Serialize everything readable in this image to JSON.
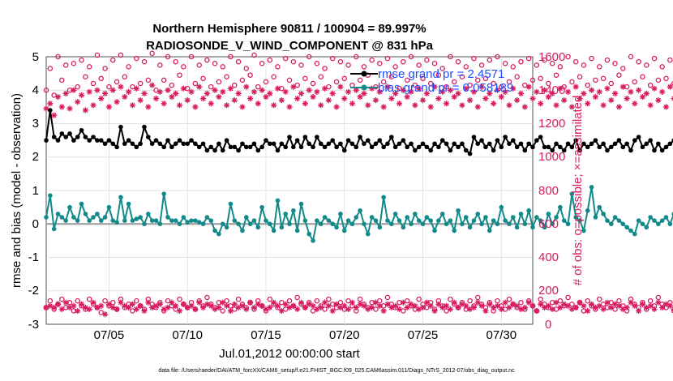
{
  "chart_data": {
    "type": "line",
    "title": [
      "Northern Hemisphere 90811 / 100904 = 89.997%",
      "RADIOSONDE_V_WIND_COMPONENT @ 831 hPa"
    ],
    "xlabel": "Jul.01,2012 00:00:00 start",
    "ylabel_left": "rmse and bias (model - observation)",
    "ylabel_right": "# of obs: o=possible; ×=assimilated",
    "footer": "data file: /Users/raeder/DAI/ATM_forcXX/CAM6_setup/f.e21.FHIST_BGC.f09_025.CAM6assim.011/Diags_NTrS_2012-07/obs_diag_output.nc",
    "xlim": [
      1,
      32
    ],
    "ylim_left": [
      -3,
      5
    ],
    "ylim_right": [
      0,
      1600
    ],
    "x_ticks": [
      5,
      10,
      15,
      20,
      25,
      30
    ],
    "x_tick_labels": [
      "07/05",
      "07/10",
      "07/15",
      "07/20",
      "07/25",
      "07/30"
    ],
    "y_ticks_left": [
      "5",
      "4",
      "3",
      "2",
      "1",
      "0",
      "-1",
      "-2",
      "-3"
    ],
    "y_ticks_right": [
      "1600",
      "1400",
      "1200",
      "1000",
      "800",
      "600",
      "400",
      "200",
      "0"
    ],
    "colors": {
      "rmse": "#000000",
      "bias": "#138a8a",
      "obs": "#d81b60",
      "legend_text": "#1f4fff",
      "zero": "#a0a0a0"
    },
    "legend": [
      {
        "name": "rmse",
        "text": "rmse grand pr = 2.4571"
      },
      {
        "name": "bias",
        "text": "bias grand pr = 0.058189"
      }
    ],
    "x_start": 1.0,
    "x_step": 0.25,
    "series": [
      {
        "name": "rmse",
        "axis": "left",
        "values": [
          2.5,
          3.4,
          2.6,
          2.5,
          2.7,
          2.6,
          2.7,
          2.5,
          2.6,
          2.8,
          2.6,
          2.5,
          2.6,
          2.5,
          2.5,
          2.4,
          2.5,
          2.4,
          2.3,
          2.9,
          2.4,
          2.5,
          2.4,
          2.3,
          2.4,
          2.9,
          2.6,
          2.4,
          2.5,
          2.4,
          2.3,
          2.5,
          2.3,
          2.4,
          2.5,
          2.4,
          2.4,
          2.5,
          2.4,
          2.3,
          2.4,
          2.2,
          2.3,
          2.2,
          2.4,
          2.2,
          2.5,
          2.3,
          2.3,
          2.2,
          2.4,
          2.3,
          2.3,
          2.4,
          2.2,
          2.3,
          2.5,
          2.4,
          2.4,
          2.2,
          2.4,
          2.3,
          2.6,
          2.3,
          2.5,
          2.3,
          2.6,
          2.4,
          2.3,
          2.6,
          2.4,
          2.3,
          2.4,
          2.5,
          2.3,
          2.4,
          2.2,
          2.5,
          2.4,
          2.3,
          2.6,
          2.4,
          2.5,
          2.3,
          2.4,
          2.5,
          2.3,
          2.4,
          2.6,
          2.3,
          2.4,
          2.5,
          2.3,
          2.4,
          2.2,
          2.3,
          2.4,
          2.3,
          2.2,
          2.4,
          2.3,
          2.5,
          2.4,
          2.2,
          2.4,
          2.3,
          2.4,
          2.2,
          2.1,
          2.6,
          2.4,
          2.5,
          2.3,
          2.4,
          2.2,
          2.5,
          2.3,
          2.6,
          2.4,
          2.5,
          2.3,
          2.4,
          2.2,
          2.4,
          2.3,
          2.5,
          2.6,
          2.3,
          2.3,
          2.2,
          2.4,
          2.3,
          2.2,
          2.4,
          2.3,
          2.5,
          2.2,
          2.4,
          2.3,
          2.4,
          2.5,
          2.3,
          2.4,
          2.2,
          2.3,
          2.4,
          2.5,
          2.3,
          2.4,
          2.2,
          2.5,
          2.6,
          2.3,
          2.4,
          2.5,
          2.2,
          2.4,
          2.2,
          2.3,
          2.4,
          2.5,
          2.2,
          2.4,
          2.3,
          2.5,
          2.4,
          2.2,
          2.3,
          2.5,
          2.6,
          2.7,
          2.5,
          2.4,
          2.2,
          2.1,
          2.4,
          2.3,
          2.4,
          2.4
        ]
      },
      {
        "name": "bias",
        "axis": "left",
        "values": [
          0.2,
          0.85,
          -0.15,
          0.3,
          0.2,
          0.1,
          0.5,
          0.2,
          0.1,
          0.6,
          0.3,
          0.1,
          0.2,
          0.3,
          0.1,
          0.2,
          0.5,
          0.1,
          0.05,
          0.8,
          0.1,
          0.6,
          0.1,
          0.15,
          0.2,
          0.0,
          0.3,
          0.1,
          0.1,
          0.0,
          0.9,
          0.2,
          0.1,
          0.1,
          0.0,
          0.2,
          0.05,
          0.1,
          0.1,
          0.05,
          0.0,
          0.2,
          0.1,
          -0.2,
          -0.3,
          0.0,
          -0.1,
          0.6,
          0.1,
          0.0,
          -0.2,
          0.2,
          0.0,
          0.1,
          -0.1,
          0.5,
          0.1,
          0.0,
          -0.2,
          0.7,
          -0.1,
          0.3,
          0.0,
          0.4,
          -0.2,
          0.6,
          0.1,
          -0.3,
          -0.5,
          0.1,
          0.0,
          0.2,
          0.1,
          0.0,
          -0.1,
          0.3,
          -0.2,
          0.1,
          0.0,
          0.2,
          0.4,
          0.0,
          -0.3,
          0.2,
          0.1,
          -0.1,
          0.8,
          0.1,
          0.0,
          0.3,
          0.1,
          -0.1,
          0.2,
          0.0,
          0.3,
          0.1,
          0.0,
          0.2,
          0.1,
          -0.2,
          0.1,
          0.3,
          0.0,
          0.1,
          -0.2,
          0.4,
          0.0,
          0.2,
          -0.1,
          0.1,
          0.3,
          0.0,
          0.2,
          -0.2,
          0.1,
          0.0,
          0.5,
          0.1,
          0.0,
          0.2,
          -0.1,
          0.3,
          0.0,
          0.4,
          -0.1,
          0.2,
          0.1,
          -0.1,
          0.3,
          0.0,
          0.2,
          0.5,
          0.1,
          0.0,
          0.9,
          0.2,
          0.1,
          -0.2,
          0.4,
          1.1,
          0.2,
          0.5,
          0.3,
          0.1,
          0.0,
          0.2,
          0.1,
          0.0,
          -0.1,
          -0.2,
          -0.3,
          0.1,
          0.0,
          -0.1,
          0.2,
          0.1,
          0.0,
          0.1,
          0.2,
          0.0,
          0.3,
          0.1,
          0.2,
          0.0,
          -0.1,
          0.2,
          0.1,
          0.0,
          0.3,
          0.2,
          -0.2,
          0.1,
          0.3,
          0.0,
          -0.3,
          -0.1,
          0.2,
          -0.5,
          -0.2,
          0.3
        ]
      },
      {
        "name": "obs_possible",
        "axis": "right",
        "values": [
          1400,
          1530,
          1370,
          1600,
          1460,
          1550,
          1400,
          1560,
          1420,
          1580,
          1480,
          1540,
          1440,
          1610,
          1470,
          1530,
          1420,
          1580,
          1450,
          1610,
          1480,
          1540,
          1420,
          1590,
          1440,
          1570,
          1460,
          1620,
          1400,
          1550,
          1460,
          1600,
          1430,
          1570,
          1490,
          1540,
          1410,
          1600,
          1440,
          1550,
          1470,
          1580,
          1420,
          1560,
          1450,
          1540,
          1480,
          1600,
          1430,
          1570,
          1460,
          1530,
          1490,
          1610,
          1420,
          1560,
          1450,
          1580,
          1480,
          1540,
          1410,
          1590,
          1460,
          1570,
          1430,
          1550,
          1470,
          1600,
          1440,
          1560,
          1480,
          1530,
          1420,
          1590,
          1450,
          1570,
          1470,
          1550,
          1430,
          1600,
          1460,
          1540,
          1490,
          1580,
          1420,
          1560,
          1450,
          1590,
          1480,
          1540,
          1410,
          1570,
          1460,
          1600,
          1430,
          1550,
          1470,
          1580,
          1440,
          1560,
          1490,
          1530,
          1420,
          1600,
          1450,
          1570,
          1480,
          1540,
          1430,
          1590,
          1460,
          1550,
          1470,
          1580,
          1440,
          1600,
          1420,
          1560,
          1450,
          1540,
          1480,
          1570,
          1430,
          1590,
          1460,
          1550,
          1470,
          1580,
          1440,
          1560,
          1490,
          1540,
          1420,
          1600,
          1450,
          1570,
          1480,
          1550,
          1430,
          1590,
          1460,
          1540,
          1470,
          1580,
          1440,
          1560,
          1490,
          1530,
          1420,
          1600,
          1450,
          1570,
          1480,
          1550,
          1430,
          1590,
          1460,
          1540,
          1470,
          1580,
          1440,
          1560,
          1490,
          1530,
          1420,
          1600,
          1450,
          1570,
          1380,
          1550,
          1430,
          1480,
          1460,
          1540,
          1470,
          1400,
          1440,
          1460,
          1490,
          1380
        ]
      },
      {
        "name": "obs_assimilated",
        "axis": "right",
        "values": [
          1290,
          1320,
          1250,
          1360,
          1300,
          1380,
          1290,
          1400,
          1330,
          1370,
          1280,
          1390,
          1310,
          1400,
          1350,
          1380,
          1300,
          1400,
          1330,
          1420,
          1360,
          1390,
          1310,
          1410,
          1340,
          1380,
          1300,
          1430,
          1350,
          1390,
          1320,
          1400,
          1360,
          1380,
          1310,
          1410,
          1340,
          1390,
          1300,
          1420,
          1350,
          1380,
          1320,
          1400,
          1360,
          1390,
          1310,
          1410,
          1340,
          1380,
          1300,
          1420,
          1350,
          1390,
          1320,
          1400,
          1360,
          1380,
          1310,
          1410,
          1340,
          1390,
          1300,
          1420,
          1350,
          1380,
          1320,
          1400,
          1360,
          1390,
          1310,
          1410,
          1340,
          1380,
          1300,
          1420,
          1350,
          1390,
          1320,
          1400,
          1360,
          1380,
          1310,
          1410,
          1340,
          1390,
          1300,
          1420,
          1350,
          1380,
          1320,
          1400,
          1360,
          1390,
          1310,
          1410,
          1340,
          1380,
          1300,
          1420,
          1350,
          1390,
          1320,
          1400,
          1360,
          1380,
          1310,
          1410,
          1340,
          1390,
          1300,
          1420,
          1350,
          1380,
          1320,
          1400,
          1360,
          1390,
          1310,
          1410,
          1340,
          1380,
          1300,
          1420,
          1350,
          1390,
          1320,
          1400,
          1360,
          1380,
          1310,
          1410,
          1340,
          1390,
          1300,
          1420,
          1350,
          1380,
          1320,
          1400,
          1360,
          1390,
          1310,
          1410,
          1340,
          1380,
          1300,
          1420,
          1350,
          1390,
          1320,
          1400,
          1360,
          1380,
          1310,
          1410,
          1340,
          1390,
          1300,
          1420,
          1350,
          1380,
          1320,
          1400,
          1360,
          1390,
          1310,
          1410,
          1340,
          1380,
          1300,
          1420,
          1350,
          1320,
          1290,
          1360,
          1310,
          1330,
          1280,
          1350,
          1300,
          1310,
          1290
        ]
      },
      {
        "name": "obs_possible_low",
        "axis": "right",
        "values": [
          100,
          140,
          90,
          120,
          150,
          100,
          130,
          80,
          140,
          110,
          90,
          150,
          120,
          100,
          70,
          140,
          110,
          130,
          90,
          150,
          100,
          120,
          80,
          140,
          110,
          90,
          150,
          120,
          100,
          130,
          80,
          140,
          110,
          90,
          150,
          120,
          100,
          130,
          90,
          140,
          110,
          160,
          120,
          100,
          130,
          80,
          140,
          110,
          90,
          150,
          120,
          100,
          130,
          90,
          140,
          110,
          80,
          150,
          120,
          100,
          130,
          90,
          140,
          110,
          160,
          120,
          100,
          130,
          80,
          140,
          110,
          90,
          150,
          120,
          100,
          130,
          90,
          140,
          110,
          80,
          150,
          120,
          100,
          130,
          90,
          140,
          110,
          160,
          120,
          100,
          130,
          80,
          140,
          110,
          90,
          150,
          120,
          100,
          130,
          90,
          140,
          110,
          80,
          150,
          120,
          100,
          130,
          90,
          140,
          110,
          160,
          120,
          100,
          130,
          80,
          140,
          110,
          90,
          150,
          120,
          100,
          130,
          90,
          140,
          110,
          80,
          150,
          120,
          100,
          130,
          90,
          140,
          110,
          160,
          120,
          100,
          130,
          80,
          140,
          110,
          90,
          150,
          120,
          100,
          130,
          90,
          140,
          110,
          80,
          150,
          120,
          100,
          130,
          90,
          140,
          110,
          160,
          120,
          100,
          130,
          80,
          140,
          110,
          90,
          150,
          120,
          100,
          130,
          90,
          140,
          110,
          80,
          0
        ]
      },
      {
        "name": "obs_assimilated_low",
        "axis": "right",
        "values": [
          100,
          110,
          100,
          120,
          90,
          130,
          100,
          110,
          80,
          120,
          100,
          90,
          130,
          100,
          110,
          60,
          120,
          100,
          90,
          130,
          110,
          100,
          120,
          90,
          110,
          80,
          130,
          100,
          110,
          120,
          90,
          100,
          130,
          110,
          80,
          120,
          100,
          110,
          90,
          130,
          100,
          120,
          110,
          90,
          100,
          130,
          110,
          80,
          120,
          100,
          110,
          90,
          130,
          100,
          120,
          110,
          90,
          100,
          130,
          110,
          80,
          120,
          100,
          110,
          90,
          130,
          100,
          120,
          110,
          90,
          100,
          130,
          110,
          80,
          120,
          100,
          110,
          90,
          130,
          100,
          120,
          110,
          90,
          100,
          130,
          110,
          80,
          120,
          100,
          110,
          90,
          130,
          100,
          120,
          110,
          90,
          100,
          130,
          110,
          80,
          120,
          100,
          110,
          90,
          130,
          100,
          120,
          110,
          90,
          100,
          130,
          110,
          80,
          120,
          100,
          110,
          90,
          130,
          100,
          120,
          110,
          90,
          100,
          130,
          110,
          80,
          120,
          100,
          110,
          90,
          130,
          100,
          120,
          110,
          90,
          100,
          130,
          110,
          80,
          120,
          100,
          110,
          90,
          130,
          100,
          120,
          110,
          90,
          100,
          130,
          110,
          80,
          120,
          100,
          110,
          90,
          130,
          100,
          120,
          110,
          90,
          100,
          130,
          110,
          80,
          120,
          100,
          110,
          90,
          130,
          100,
          120,
          110,
          90,
          100,
          130,
          110,
          80,
          120,
          100,
          110,
          90,
          130
        ]
      }
    ]
  }
}
